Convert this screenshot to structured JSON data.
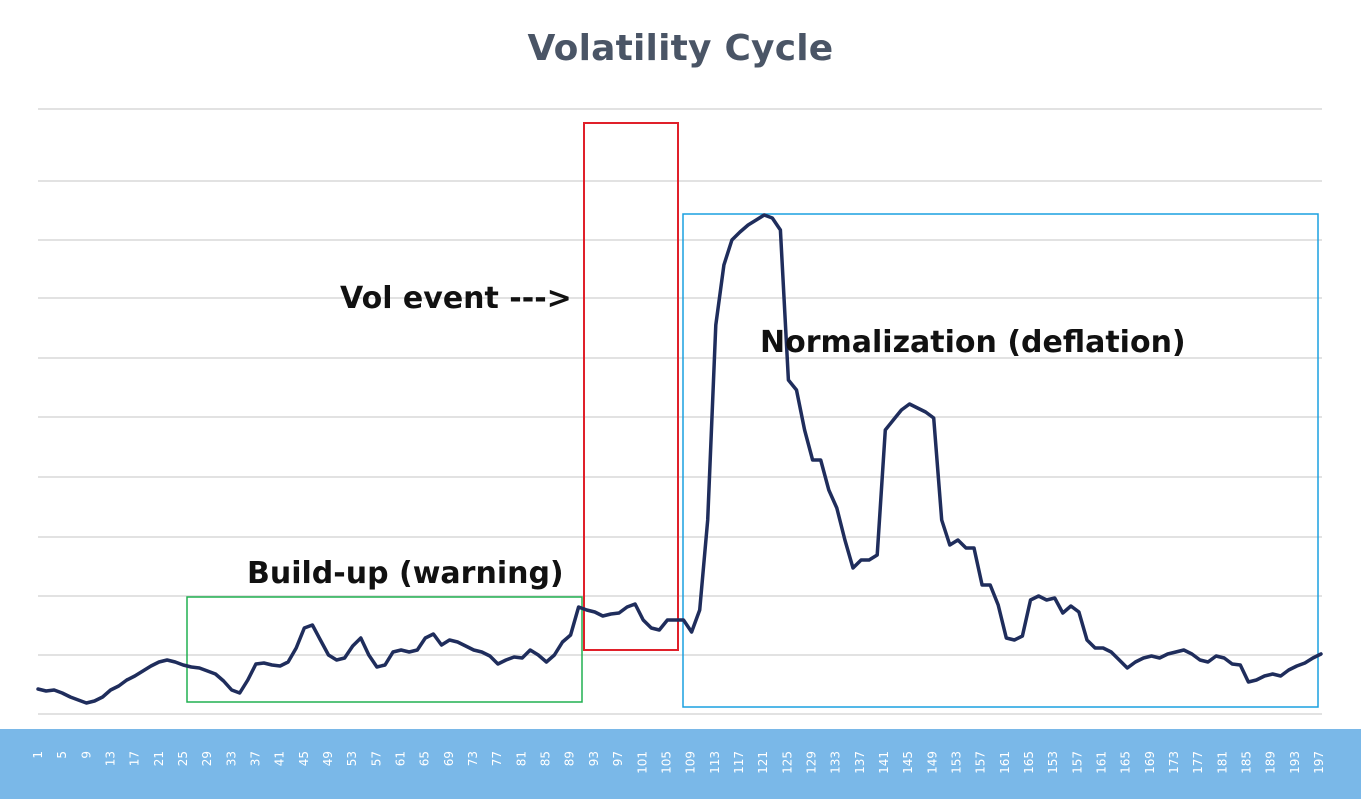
{
  "chart_data": {
    "type": "line",
    "title": "Volatility Cycle",
    "xlabel": "",
    "ylabel": "",
    "grid": true,
    "x_tick_labels": [
      "1",
      "5",
      "9",
      "13",
      "17",
      "21",
      "25",
      "29",
      "33",
      "37",
      "41",
      "45",
      "49",
      "53",
      "57",
      "61",
      "65",
      "69",
      "73",
      "77",
      "81",
      "85",
      "89",
      "93",
      "97",
      "101",
      "105",
      "109",
      "113",
      "117",
      "121",
      "125",
      "129",
      "133",
      "137",
      "141",
      "145",
      "149",
      "153",
      "157",
      "161",
      "165",
      "153",
      "157",
      "161",
      "165",
      "169",
      "173",
      "177",
      "181",
      "185",
      "189",
      "193",
      "197"
    ],
    "series": [
      {
        "color": "#1f2d5c",
        "points": [
          [
            1,
            689
          ],
          [
            3,
            691
          ],
          [
            5,
            690
          ],
          [
            7,
            693
          ],
          [
            9,
            697
          ],
          [
            11,
            700
          ],
          [
            13,
            703
          ],
          [
            15,
            701
          ],
          [
            17,
            697
          ],
          [
            19,
            690
          ],
          [
            21,
            686
          ],
          [
            23,
            680
          ],
          [
            25,
            676
          ],
          [
            27,
            671
          ],
          [
            29,
            666
          ],
          [
            31,
            662
          ],
          [
            33,
            660
          ],
          [
            35,
            662
          ],
          [
            37,
            665
          ],
          [
            39,
            667
          ],
          [
            41,
            668
          ],
          [
            43,
            671
          ],
          [
            45,
            674
          ],
          [
            47,
            681
          ],
          [
            49,
            690
          ],
          [
            51,
            693
          ],
          [
            53,
            680
          ],
          [
            55,
            664
          ],
          [
            57,
            663
          ],
          [
            59,
            665
          ],
          [
            61,
            666
          ],
          [
            63,
            662
          ],
          [
            65,
            648
          ],
          [
            67,
            628
          ],
          [
            69,
            625
          ],
          [
            71,
            640
          ],
          [
            73,
            655
          ],
          [
            75,
            660
          ],
          [
            77,
            658
          ],
          [
            79,
            646
          ],
          [
            81,
            638
          ],
          [
            83,
            655
          ],
          [
            85,
            667
          ],
          [
            87,
            665
          ],
          [
            89,
            652
          ],
          [
            91,
            650
          ],
          [
            93,
            652
          ],
          [
            95,
            650
          ],
          [
            97,
            638
          ],
          [
            99,
            634
          ],
          [
            101,
            645
          ],
          [
            103,
            640
          ],
          [
            105,
            642
          ],
          [
            107,
            646
          ],
          [
            109,
            650
          ],
          [
            111,
            652
          ],
          [
            113,
            656
          ],
          [
            115,
            664
          ],
          [
            117,
            660
          ],
          [
            119,
            657
          ],
          [
            121,
            658
          ],
          [
            123,
            650
          ],
          [
            125,
            655
          ],
          [
            127,
            662
          ],
          [
            129,
            655
          ],
          [
            131,
            642
          ],
          [
            133,
            635
          ],
          [
            135,
            607
          ],
          [
            137,
            610
          ],
          [
            139,
            612
          ],
          [
            141,
            616
          ],
          [
            143,
            614
          ],
          [
            145,
            613
          ],
          [
            147,
            607
          ],
          [
            149,
            604
          ],
          [
            151,
            620
          ],
          [
            153,
            628
          ],
          [
            155,
            630
          ],
          [
            157,
            620
          ],
          [
            159,
            620
          ],
          [
            161,
            620
          ],
          [
            163,
            632
          ],
          [
            165,
            610
          ],
          [
            167,
            520
          ],
          [
            169,
            325
          ],
          [
            171,
            265
          ],
          [
            173,
            240
          ],
          [
            175,
            232
          ],
          [
            177,
            225
          ],
          [
            179,
            220
          ],
          [
            181,
            215
          ],
          [
            183,
            218
          ],
          [
            185,
            230
          ],
          [
            187,
            380
          ],
          [
            189,
            390
          ],
          [
            191,
            430
          ],
          [
            193,
            460
          ],
          [
            195,
            460
          ],
          [
            197,
            490
          ],
          [
            199,
            508
          ],
          [
            201,
            540
          ],
          [
            203,
            568
          ],
          [
            205,
            560
          ],
          [
            207,
            560
          ],
          [
            209,
            555
          ],
          [
            211,
            430
          ],
          [
            213,
            420
          ],
          [
            215,
            410
          ],
          [
            217,
            404
          ],
          [
            219,
            408
          ],
          [
            221,
            412
          ],
          [
            223,
            418
          ],
          [
            225,
            520
          ],
          [
            227,
            545
          ],
          [
            229,
            540
          ],
          [
            231,
            548
          ],
          [
            233,
            548
          ],
          [
            235,
            585
          ],
          [
            237,
            585
          ],
          [
            239,
            605
          ],
          [
            241,
            638
          ],
          [
            243,
            640
          ],
          [
            245,
            636
          ],
          [
            247,
            600
          ],
          [
            249,
            596
          ],
          [
            251,
            600
          ],
          [
            253,
            598
          ],
          [
            255,
            613
          ],
          [
            257,
            606
          ],
          [
            259,
            612
          ],
          [
            261,
            640
          ],
          [
            263,
            648
          ],
          [
            265,
            648
          ],
          [
            267,
            652
          ],
          [
            269,
            660
          ],
          [
            271,
            668
          ],
          [
            273,
            662
          ],
          [
            275,
            658
          ],
          [
            277,
            656
          ],
          [
            279,
            658
          ],
          [
            281,
            654
          ],
          [
            283,
            652
          ],
          [
            285,
            650
          ],
          [
            287,
            654
          ],
          [
            289,
            660
          ],
          [
            291,
            662
          ],
          [
            293,
            656
          ],
          [
            295,
            658
          ],
          [
            297,
            664
          ],
          [
            299,
            665
          ],
          [
            301,
            682
          ],
          [
            303,
            680
          ],
          [
            305,
            676
          ],
          [
            307,
            674
          ],
          [
            309,
            676
          ],
          [
            311,
            670
          ],
          [
            313,
            666
          ],
          [
            315,
            663
          ],
          [
            317,
            658
          ],
          [
            319,
            654
          ]
        ]
      }
    ],
    "annotations": {
      "build_up": "Build-up (warning)",
      "vol_event": "Vol event --->",
      "normalization": "Normalization (deflation)"
    },
    "box_colors": {
      "build_up": "#20b050",
      "vol_event": "#e0202a",
      "normalization": "#1aa0e0"
    },
    "axis_bar_color": "#7ab8e8"
  }
}
